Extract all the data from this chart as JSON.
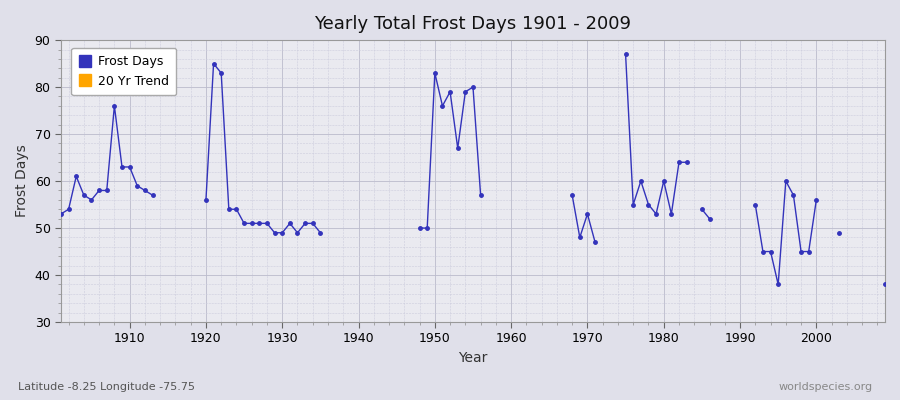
{
  "title": "Yearly Total Frost Days 1901 - 2009",
  "xlabel": "Year",
  "ylabel": "Frost Days",
  "subtitle": "Latitude -8.25 Longitude -75.75",
  "watermark": "worldspecies.org",
  "ylim": [
    30,
    90
  ],
  "xlim": [
    1901,
    2009
  ],
  "yticks": [
    30,
    40,
    50,
    60,
    70,
    80,
    90
  ],
  "xticks": [
    1910,
    1920,
    1930,
    1940,
    1950,
    1960,
    1970,
    1980,
    1990,
    2000
  ],
  "line_color": "#3333bb",
  "marker": "o",
  "markersize": 2.5,
  "linewidth": 1.0,
  "background_color": "#eaeaf0",
  "fig_background_color": "#e0e0ea",
  "legend_labels": [
    "Frost Days",
    "20 Yr Trend"
  ],
  "legend_colors": [
    "#3333bb",
    "#ffa500"
  ],
  "frost_days": {
    "1901": 53,
    "1902": 54,
    "1903": 61,
    "1904": 57,
    "1905": 56,
    "1906": 58,
    "1907": 58,
    "1908": 76,
    "1909": 63,
    "1910": 63,
    "1911": 59,
    "1912": 58,
    "1913": 57,
    "1920": 56,
    "1921": 85,
    "1922": 83,
    "1923": 54,
    "1924": 54,
    "1925": 51,
    "1926": 51,
    "1927": 51,
    "1928": 51,
    "1929": 49,
    "1930": 49,
    "1931": 51,
    "1932": 49,
    "1933": 51,
    "1934": 51,
    "1935": 49,
    "1948": 50,
    "1949": 50,
    "1950": 83,
    "1951": 76,
    "1952": 79,
    "1953": 67,
    "1954": 79,
    "1955": 80,
    "1956": 57,
    "1968": 57,
    "1969": 48,
    "1970": 53,
    "1971": 47,
    "1975": 87,
    "1976": 55,
    "1977": 60,
    "1978": 55,
    "1979": 53,
    "1980": 60,
    "1981": 53,
    "1982": 64,
    "1983": 64,
    "1985": 54,
    "1986": 52,
    "1992": 55,
    "1993": 45,
    "1994": 45,
    "1995": 38,
    "1996": 60,
    "1997": 57,
    "1998": 45,
    "1999": 45,
    "2000": 56,
    "2003": 49,
    "2009": 38
  }
}
